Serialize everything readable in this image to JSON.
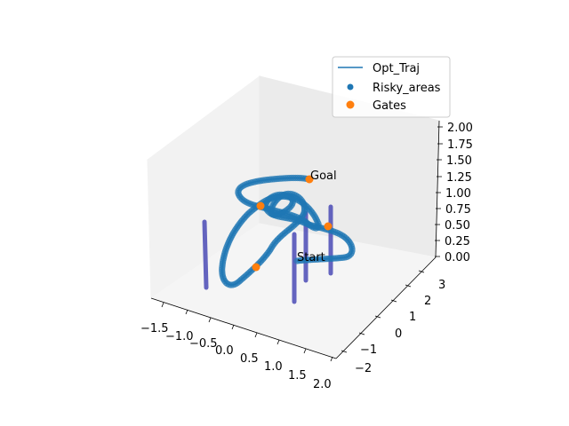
{
  "chart_data": {
    "type": "scatter",
    "projection": "3d",
    "title": "",
    "xlabel": "",
    "ylabel": "",
    "zlabel": "",
    "grid": false,
    "legend_position": "upper-right",
    "x_ticks": [
      "−1.5",
      "−1.0",
      "−0.5",
      "0.0",
      "0.5",
      "1.0",
      "1.5",
      "2.0"
    ],
    "y_ticks": [
      "−2",
      "−1",
      "0",
      "1",
      "2",
      "3"
    ],
    "z_ticks": [
      "0.00",
      "0.25",
      "0.50",
      "0.75",
      "1.00",
      "1.25",
      "1.50",
      "1.75",
      "2.00"
    ],
    "legend": [
      {
        "label": "Opt_Traj",
        "marker": "line",
        "color": "#1f77b4"
      },
      {
        "label": "Risky_areas",
        "marker": "point",
        "color": "#1f77b4"
      },
      {
        "label": "Gates",
        "marker": "point",
        "color": "#ff7f0e"
      }
    ],
    "annotations": [
      {
        "text": "Start"
      },
      {
        "text": "Goal"
      }
    ],
    "colors": {
      "trajectory": "#1f77b4",
      "gates": "#ff7f0e",
      "pillars": "#4a4ab5"
    }
  }
}
